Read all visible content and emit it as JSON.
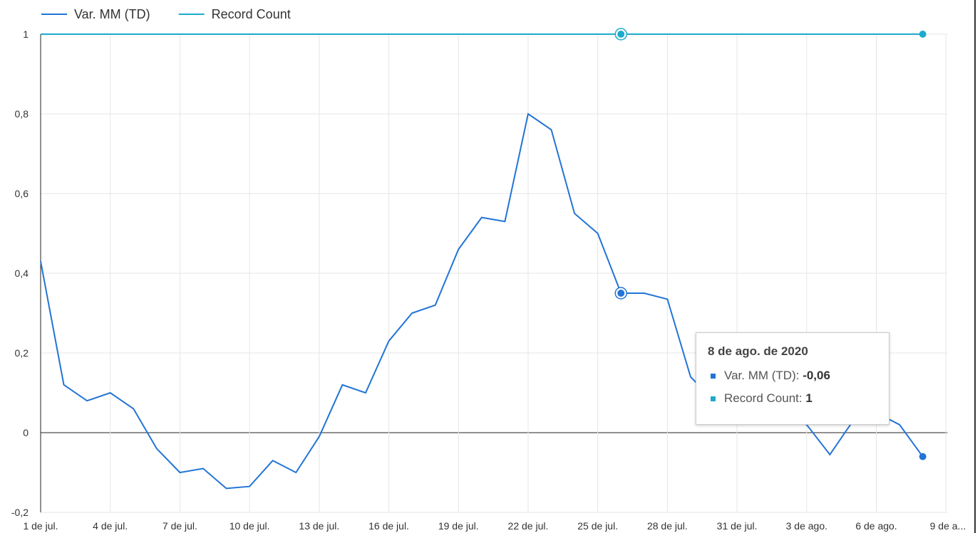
{
  "chart_data": {
    "type": "line",
    "categories": [
      "1 de jul.",
      null,
      null,
      "4 de jul.",
      null,
      null,
      "7 de jul.",
      null,
      null,
      "10 de jul.",
      null,
      null,
      "13 de jul.",
      null,
      null,
      "16 de jul.",
      null,
      null,
      "19 de jul.",
      null,
      null,
      "22 de jul.",
      null,
      null,
      "25 de jul.",
      null,
      null,
      "28 de jul.",
      null,
      null,
      "31 de jul.",
      null,
      null,
      "3 de ago.",
      null,
      null,
      "6 de ago.",
      null,
      null,
      "9 de a..."
    ],
    "series": [
      {
        "name": "Var. MM (TD)",
        "color": "#2274d6",
        "values": [
          0.43,
          0.12,
          0.08,
          0.1,
          0.06,
          -0.04,
          -0.1,
          -0.09,
          -0.14,
          -0.135,
          -0.07,
          -0.1,
          -0.01,
          0.12,
          0.1,
          0.23,
          0.3,
          0.32,
          0.46,
          0.54,
          0.53,
          0.8,
          0.76,
          0.55,
          0.5,
          0.35,
          0.35,
          0.335,
          0.14,
          0.08,
          0.07,
          0.05,
          0.04,
          0.02,
          -0.055,
          0.03,
          0.05,
          0.02,
          -0.06,
          null
        ]
      },
      {
        "name": "Record Count",
        "color": "#1eaacb",
        "values": [
          1,
          1,
          1,
          1,
          1,
          1,
          1,
          1,
          1,
          1,
          1,
          1,
          1,
          1,
          1,
          1,
          1,
          1,
          1,
          1,
          1,
          1,
          1,
          1,
          1,
          1,
          1,
          1,
          1,
          1,
          1,
          1,
          1,
          1,
          1,
          1,
          1,
          1,
          1,
          null
        ]
      }
    ],
    "ylim": [
      -0.2,
      1
    ],
    "yticks": [
      {
        "value": -0.2,
        "label": "-0,2"
      },
      0,
      {
        "value": 0.2,
        "label": "0,2"
      },
      {
        "value": 0.4,
        "label": "0,4"
      },
      {
        "value": 0.6,
        "label": "0,6"
      },
      {
        "value": 0.8,
        "label": "0,8"
      },
      1
    ],
    "grid": true,
    "legend": "top",
    "tooltip": {
      "title": "8 de ago. de 2020",
      "rows": [
        {
          "label": "Var. MM (TD):",
          "value": "-0,06"
        },
        {
          "label": "Record Count:",
          "value": "1"
        }
      ]
    }
  }
}
